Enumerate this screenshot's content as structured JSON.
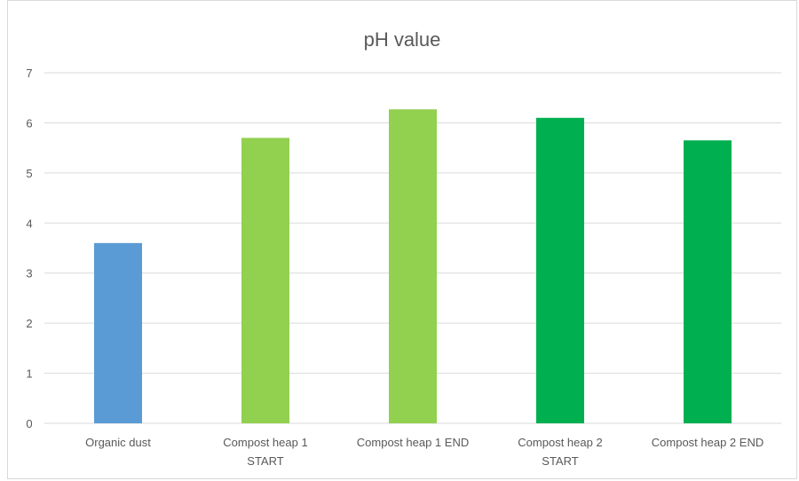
{
  "chart_data": {
    "type": "bar",
    "title": "pH value",
    "xlabel": "",
    "ylabel": "",
    "ylim": [
      0,
      7
    ],
    "yticks": [
      0,
      1,
      2,
      3,
      4,
      5,
      6,
      7
    ],
    "grid": true,
    "legend": "none",
    "categories": [
      [
        "Organic dust"
      ],
      [
        "Compost heap 1",
        "START"
      ],
      [
        "Compost heap 1 END"
      ],
      [
        "Compost heap 2",
        "START"
      ],
      [
        "Compost heap 2 END"
      ]
    ],
    "values": [
      3.6,
      5.7,
      6.27,
      6.1,
      5.65
    ],
    "bar_colors": [
      "#5b9bd5",
      "#92d050",
      "#92d050",
      "#00b050",
      "#00b050"
    ],
    "grid_color": "#d9d9d9",
    "text_color": "#595959"
  }
}
